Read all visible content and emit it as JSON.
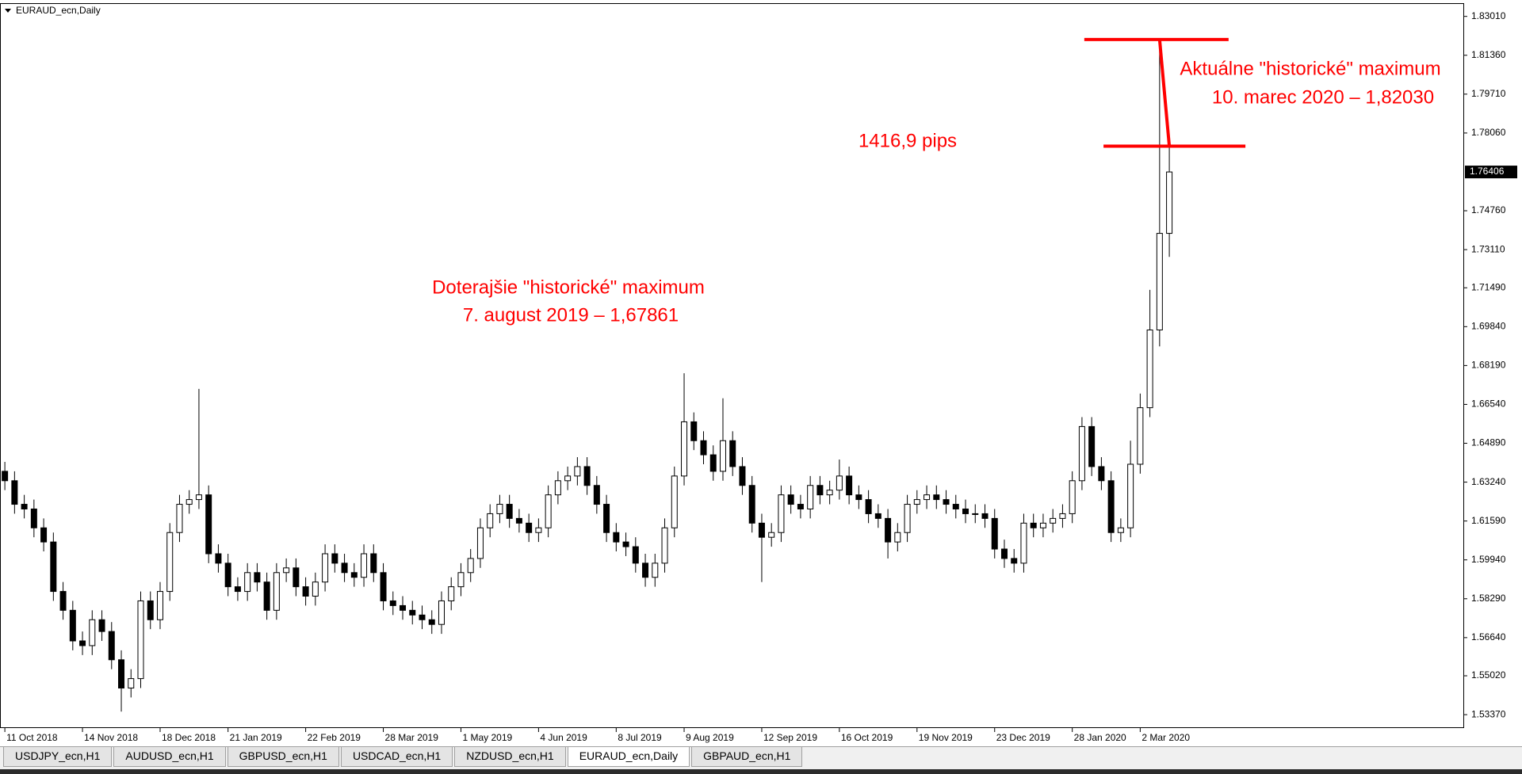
{
  "chart_data": {
    "type": "candlestick",
    "title": "EURAUD_ecn,Daily",
    "xlim": [
      -0.5,
      150.3
    ],
    "xticks": [
      {
        "value": 0,
        "label": "11 Oct 2018"
      },
      {
        "value": 8,
        "label": "14 Nov 2018"
      },
      {
        "value": 16,
        "label": "18 Dec 2018"
      },
      {
        "value": 23,
        "label": "21 Jan 2019"
      },
      {
        "value": 31,
        "label": "22 Feb 2019"
      },
      {
        "value": 39,
        "label": "28 Mar 2019"
      },
      {
        "value": 47,
        "label": "1 May 2019"
      },
      {
        "value": 55,
        "label": "4 Jun 2019"
      },
      {
        "value": 63,
        "label": "8 Jul 2019"
      },
      {
        "value": 70,
        "label": "9 Aug 2019"
      },
      {
        "value": 78,
        "label": "12 Sep 2019"
      },
      {
        "value": 86,
        "label": "16 Oct 2019"
      },
      {
        "value": 94,
        "label": "19 Nov 2019"
      },
      {
        "value": 102,
        "label": "23 Dec 2019"
      },
      {
        "value": 110,
        "label": "28 Jan 2020"
      },
      {
        "value": 117,
        "label": "2 Mar 2020"
      }
    ],
    "ylim": [
      1.52835,
      1.83504
    ],
    "yticks": [
      {
        "value": 1.8301,
        "label": "1.83010"
      },
      {
        "value": 1.8136,
        "label": "1.81360"
      },
      {
        "value": 1.7971,
        "label": "1.79710"
      },
      {
        "value": 1.7806,
        "label": "1.78060"
      },
      {
        "value": 1.7476,
        "label": "1.74760"
      },
      {
        "value": 1.7311,
        "label": "1.73110"
      },
      {
        "value": 1.7149,
        "label": "1.71490"
      },
      {
        "value": 1.6984,
        "label": "1.69840"
      },
      {
        "value": 1.6819,
        "label": "1.68190"
      },
      {
        "value": 1.6654,
        "label": "1.66540"
      },
      {
        "value": 1.6489,
        "label": "1.64890"
      },
      {
        "value": 1.6324,
        "label": "1.63240"
      },
      {
        "value": 1.6159,
        "label": "1.61590"
      },
      {
        "value": 1.5994,
        "label": "1.59940"
      },
      {
        "value": 1.5829,
        "label": "1.58290"
      },
      {
        "value": 1.5664,
        "label": "1.56640"
      },
      {
        "value": 1.5502,
        "label": "1.55020"
      },
      {
        "value": 1.5337,
        "label": "1.53370"
      }
    ],
    "grid": false,
    "up_color": "#ffffff",
    "down_color": "#000000",
    "line_color": "#000000",
    "annotation_color": "#ff0000",
    "open": [
      1.637,
      1.633,
      1.623,
      1.621,
      1.613,
      1.607,
      1.586,
      1.578,
      1.565,
      1.563,
      1.574,
      1.569,
      1.557,
      1.545,
      1.549,
      1.582,
      1.574,
      1.586,
      1.611,
      1.623,
      1.625,
      1.627,
      1.602,
      1.598,
      1.588,
      1.586,
      1.594,
      1.59,
      1.578,
      1.594,
      1.596,
      1.588,
      1.584,
      1.59,
      1.602,
      1.598,
      1.594,
      1.592,
      1.602,
      1.594,
      1.582,
      1.58,
      1.578,
      1.576,
      1.574,
      1.572,
      1.582,
      1.588,
      1.594,
      1.6,
      1.613,
      1.619,
      1.623,
      1.617,
      1.615,
      1.611,
      1.613,
      1.627,
      1.633,
      1.635,
      1.639,
      1.631,
      1.623,
      1.611,
      1.607,
      1.605,
      1.598,
      1.592,
      1.598,
      1.613,
      1.635,
      1.658,
      1.65,
      1.644,
      1.637,
      1.65,
      1.639,
      1.631,
      1.615,
      1.609,
      1.611,
      1.627,
      1.623,
      1.621,
      1.631,
      1.627,
      1.629,
      1.635,
      1.627,
      1.625,
      1.619,
      1.617,
      1.607,
      1.611,
      1.623,
      1.625,
      1.627,
      1.625,
      1.623,
      1.621,
      1.619,
      1.619,
      1.617,
      1.604,
      1.6,
      1.598,
      1.615,
      1.613,
      1.615,
      1.617,
      1.619,
      1.633,
      1.656,
      1.639,
      1.633,
      1.611,
      1.613,
      1.64,
      1.664,
      1.697,
      1.738
    ],
    "high": [
      1.641,
      1.637,
      1.627,
      1.625,
      1.617,
      1.611,
      1.59,
      1.582,
      1.569,
      1.578,
      1.578,
      1.573,
      1.561,
      1.553,
      1.586,
      1.586,
      1.59,
      1.615,
      1.627,
      1.629,
      1.672,
      1.631,
      1.606,
      1.602,
      1.592,
      1.598,
      1.598,
      1.594,
      1.598,
      1.6,
      1.6,
      1.592,
      1.594,
      1.606,
      1.606,
      1.602,
      1.598,
      1.606,
      1.606,
      1.598,
      1.586,
      1.584,
      1.582,
      1.58,
      1.578,
      1.586,
      1.592,
      1.598,
      1.604,
      1.617,
      1.623,
      1.627,
      1.627,
      1.621,
      1.619,
      1.617,
      1.631,
      1.637,
      1.639,
      1.643,
      1.643,
      1.635,
      1.627,
      1.615,
      1.611,
      1.609,
      1.602,
      1.602,
      1.617,
      1.639,
      1.67861,
      1.662,
      1.654,
      1.648,
      1.668,
      1.654,
      1.643,
      1.635,
      1.619,
      1.615,
      1.631,
      1.631,
      1.627,
      1.635,
      1.635,
      1.633,
      1.642,
      1.639,
      1.631,
      1.629,
      1.623,
      1.621,
      1.615,
      1.627,
      1.629,
      1.631,
      1.631,
      1.629,
      1.627,
      1.625,
      1.623,
      1.623,
      1.621,
      1.608,
      1.604,
      1.619,
      1.619,
      1.619,
      1.621,
      1.623,
      1.637,
      1.66,
      1.66,
      1.643,
      1.637,
      1.617,
      1.65,
      1.67,
      1.714,
      1.8203,
      1.775
    ],
    "low": [
      1.629,
      1.619,
      1.617,
      1.609,
      1.603,
      1.582,
      1.574,
      1.561,
      1.559,
      1.559,
      1.565,
      1.553,
      1.535,
      1.541,
      1.545,
      1.57,
      1.57,
      1.582,
      1.607,
      1.619,
      1.621,
      1.598,
      1.594,
      1.584,
      1.582,
      1.582,
      1.586,
      1.574,
      1.574,
      1.59,
      1.584,
      1.58,
      1.58,
      1.586,
      1.594,
      1.59,
      1.588,
      1.588,
      1.59,
      1.578,
      1.576,
      1.574,
      1.572,
      1.57,
      1.568,
      1.568,
      1.578,
      1.584,
      1.59,
      1.596,
      1.609,
      1.615,
      1.613,
      1.611,
      1.607,
      1.607,
      1.609,
      1.623,
      1.629,
      1.631,
      1.627,
      1.619,
      1.607,
      1.603,
      1.601,
      1.594,
      1.588,
      1.588,
      1.594,
      1.609,
      1.631,
      1.646,
      1.64,
      1.633,
      1.633,
      1.635,
      1.627,
      1.611,
      1.59,
      1.605,
      1.607,
      1.619,
      1.617,
      1.617,
      1.623,
      1.623,
      1.625,
      1.623,
      1.621,
      1.615,
      1.613,
      1.6,
      1.603,
      1.607,
      1.619,
      1.621,
      1.621,
      1.619,
      1.617,
      1.615,
      1.615,
      1.613,
      1.6,
      1.596,
      1.594,
      1.594,
      1.609,
      1.609,
      1.611,
      1.613,
      1.615,
      1.629,
      1.635,
      1.629,
      1.607,
      1.607,
      1.609,
      1.636,
      1.66,
      1.69,
      1.728
    ],
    "close": [
      1.633,
      1.623,
      1.621,
      1.613,
      1.607,
      1.586,
      1.578,
      1.565,
      1.563,
      1.574,
      1.569,
      1.557,
      1.545,
      1.549,
      1.582,
      1.574,
      1.586,
      1.611,
      1.623,
      1.625,
      1.627,
      1.602,
      1.598,
      1.588,
      1.586,
      1.594,
      1.59,
      1.578,
      1.594,
      1.596,
      1.588,
      1.584,
      1.59,
      1.602,
      1.598,
      1.594,
      1.592,
      1.602,
      1.594,
      1.582,
      1.58,
      1.578,
      1.576,
      1.574,
      1.572,
      1.582,
      1.588,
      1.594,
      1.6,
      1.613,
      1.619,
      1.623,
      1.617,
      1.615,
      1.611,
      1.613,
      1.627,
      1.633,
      1.635,
      1.639,
      1.631,
      1.623,
      1.611,
      1.607,
      1.605,
      1.598,
      1.592,
      1.598,
      1.613,
      1.635,
      1.658,
      1.65,
      1.644,
      1.637,
      1.65,
      1.639,
      1.631,
      1.615,
      1.609,
      1.611,
      1.627,
      1.623,
      1.621,
      1.631,
      1.627,
      1.629,
      1.635,
      1.627,
      1.625,
      1.619,
      1.617,
      1.607,
      1.611,
      1.623,
      1.625,
      1.627,
      1.625,
      1.623,
      1.621,
      1.619,
      1.619,
      1.617,
      1.604,
      1.6,
      1.598,
      1.615,
      1.613,
      1.615,
      1.617,
      1.619,
      1.633,
      1.656,
      1.639,
      1.633,
      1.611,
      1.613,
      1.64,
      1.664,
      1.697,
      1.738,
      1.76406
    ],
    "annotations": [
      "Doterajšie \"historické\" maximum",
      "7. august 2019 – 1,67861",
      "1416,9 pips",
      "Aktuálne \"historické\" maximum",
      "10. marec 2020 – 1,82030"
    ]
  },
  "tabs": [
    "USDJPY_ecn,H1",
    "AUDUSD_ecn,H1",
    "GBPUSD_ecn,H1",
    "USDCAD_ecn,H1",
    "NZDUSD_ecn,H1",
    "EURAUD_ecn,Daily",
    "GBPAUD_ecn,H1"
  ],
  "active_tab": 5
}
